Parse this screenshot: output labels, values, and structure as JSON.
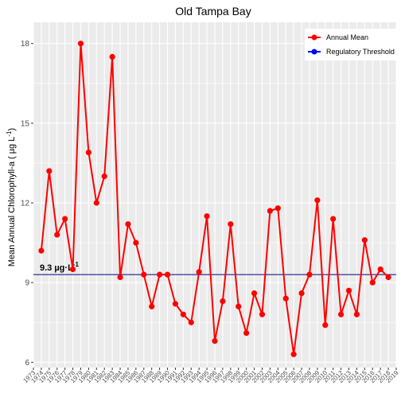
{
  "chart_data": {
    "type": "line",
    "title": "Old Tampa Bay",
    "xlabel": "",
    "ylabel": "Mean Annual Chlorophyll-a ( µg L",
    "ylabel_sup": "-1",
    "ylabel_close": ")",
    "ylim": [
      5.8,
      18.8
    ],
    "yticks": [
      6,
      9,
      12,
      15,
      18
    ],
    "x": [
      1974,
      1975,
      1976,
      1977,
      1978,
      1979,
      1980,
      1981,
      1982,
      1983,
      1984,
      1985,
      1986,
      1987,
      1988,
      1989,
      1990,
      1991,
      1992,
      1993,
      1994,
      1995,
      1996,
      1997,
      1998,
      1999,
      2000,
      2001,
      2002,
      2003,
      2004,
      2005,
      2006,
      2007,
      2008,
      2009,
      2010,
      2011,
      2012,
      2013,
      2014,
      2015,
      2016,
      2017,
      2018
    ],
    "x_tick_labels": [
      "1973",
      "1974",
      "1975",
      "1976",
      "1977",
      "1978",
      "1979",
      "1980",
      "1981",
      "1982",
      "1983",
      "1984",
      "1985",
      "1986",
      "1987",
      "1988",
      "1989",
      "1990",
      "1991",
      "1992",
      "1993",
      "1994",
      "1995",
      "1996",
      "1997",
      "1998",
      "1999",
      "2000",
      "2001",
      "2002",
      "2003",
      "2004",
      "2005",
      "2006",
      "2007",
      "2008",
      "2009",
      "2010",
      "2011",
      "2012",
      "2013",
      "2014",
      "2015",
      "2016",
      "2017",
      "2018",
      "2019"
    ],
    "series": [
      {
        "name": "Annual Mean",
        "color": "#ff0000",
        "values": [
          10.2,
          13.2,
          10.8,
          11.4,
          9.5,
          18.0,
          13.9,
          12.0,
          13.0,
          17.5,
          9.2,
          11.2,
          10.5,
          9.3,
          8.1,
          9.3,
          9.3,
          8.2,
          7.8,
          7.5,
          9.4,
          11.5,
          6.8,
          8.3,
          11.2,
          8.1,
          7.1,
          8.6,
          7.8,
          11.7,
          11.8,
          8.4,
          6.3,
          8.6,
          9.3,
          12.1,
          7.4,
          11.4,
          7.8,
          8.7,
          7.8,
          10.6,
          9.0,
          9.5,
          9.2
        ]
      }
    ],
    "threshold": {
      "name": "Regulatory Threshold",
      "value": 9.3,
      "color": "#0000ff",
      "label": "9.3 µg·L",
      "label_sup": "-1"
    },
    "legend_position": "top-right",
    "grid": true,
    "background": "#ebebeb",
    "gridline_color": "#ffffff"
  }
}
